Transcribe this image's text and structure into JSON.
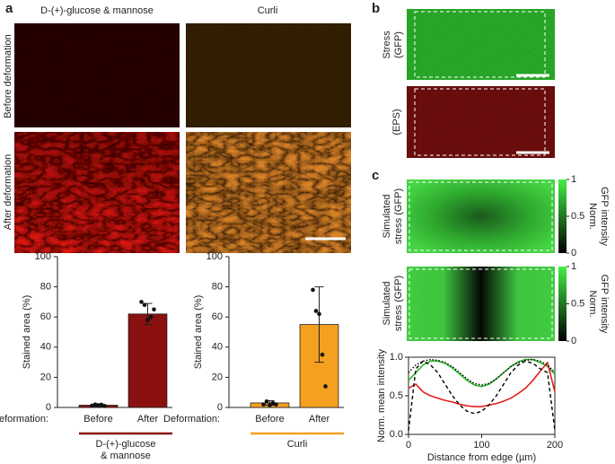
{
  "figure": {
    "panel_labels": [
      "a",
      "b",
      "c"
    ],
    "a": {
      "columns": [
        "D-(+)-glucose & mannose",
        "Curli"
      ],
      "rows": [
        "Before deformation",
        "After deformation"
      ]
    },
    "b": {
      "rows": [
        [
          "Stress",
          "(GFP)"
        ],
        [
          "(EPS)"
        ]
      ]
    },
    "c": {
      "rows": [
        [
          "Simulated",
          "stress (GFP)"
        ],
        [
          "Simulated",
          "stress (GFP)"
        ]
      ],
      "colorbars": [
        {
          "label": [
            "Norm.",
            "GFP intensity"
          ],
          "ticks": [
            1,
            0.5,
            0
          ]
        },
        {
          "label": [
            "Norm.",
            "GFP intensity"
          ],
          "ticks": [
            1,
            0.5,
            0
          ]
        }
      ]
    }
  },
  "chart_data": [
    {
      "type": "bar",
      "ylabel": "Stained area (%)",
      "xlabel": "Deformation:",
      "categories": [
        "Before",
        "After"
      ],
      "values": [
        1.5,
        62
      ],
      "errors": [
        0.8,
        7
      ],
      "points": [
        [
          1.2,
          2,
          1.5,
          1.8,
          1
        ],
        [
          70,
          68,
          58,
          60,
          65
        ]
      ],
      "color": "#8b1010",
      "group_label": [
        "D-(+)-glucose",
        "& mannose"
      ],
      "ylim": [
        0,
        100
      ],
      "yticks": [
        0,
        20,
        40,
        60,
        80,
        100
      ]
    },
    {
      "type": "bar",
      "ylabel": "Stained area (%)",
      "xlabel": "Deformation:",
      "categories": [
        "Before",
        "After"
      ],
      "values": [
        3,
        55
      ],
      "errors": [
        1.5,
        25
      ],
      "points": [
        [
          2,
          4,
          1.5,
          3,
          2
        ],
        [
          78,
          64,
          62,
          35,
          14
        ]
      ],
      "color": "#f5a01e",
      "group_label": [
        "Curli"
      ],
      "ylim": [
        0,
        100
      ],
      "yticks": [
        0,
        20,
        40,
        60,
        80,
        100
      ]
    },
    {
      "type": "line",
      "ylabel": "Norm. mean intensity",
      "xlabel": "Distance from edge (µm)",
      "x": [
        0,
        10,
        20,
        30,
        40,
        50,
        60,
        70,
        80,
        90,
        100,
        110,
        120,
        130,
        140,
        150,
        160,
        170,
        180,
        190,
        200
      ],
      "series": [
        {
          "color": "#2ab52a",
          "style": "solid",
          "values": [
            0.7,
            0.8,
            0.9,
            0.95,
            0.95,
            0.92,
            0.86,
            0.78,
            0.7,
            0.64,
            0.62,
            0.65,
            0.72,
            0.8,
            0.88,
            0.94,
            0.97,
            0.97,
            0.93,
            0.88,
            0.78
          ]
        },
        {
          "color": "#e3211c",
          "style": "solid",
          "values": [
            0.6,
            0.65,
            0.55,
            0.5,
            0.47,
            0.44,
            0.42,
            0.39,
            0.37,
            0.36,
            0.36,
            0.38,
            0.4,
            0.43,
            0.47,
            0.53,
            0.6,
            0.7,
            0.82,
            0.93,
            0.55
          ]
        },
        {
          "color": "#000000",
          "style": "dashed",
          "values": [
            0.05,
            0.85,
            0.95,
            0.9,
            0.8,
            0.65,
            0.5,
            0.38,
            0.3,
            0.27,
            0.3,
            0.38,
            0.5,
            0.65,
            0.8,
            0.9,
            0.95,
            0.92,
            0.85,
            0.8,
            0.05
          ]
        },
        {
          "color": "#000000",
          "style": "dotted",
          "values": [
            0.8,
            0.9,
            0.95,
            0.97,
            0.96,
            0.93,
            0.88,
            0.8,
            0.72,
            0.66,
            0.64,
            0.66,
            0.72,
            0.8,
            0.88,
            0.93,
            0.96,
            0.97,
            0.95,
            0.9,
            0.8
          ]
        }
      ],
      "xlim": [
        0,
        200
      ],
      "xticks": [
        0,
        100,
        200
      ],
      "ylim": [
        0,
        1
      ],
      "yticks": [
        {
          "value": 0,
          "label": "0.0"
        },
        {
          "value": 0.5,
          "label": "0.5"
        },
        {
          "value": 1,
          "label": "1.0"
        }
      ]
    }
  ]
}
